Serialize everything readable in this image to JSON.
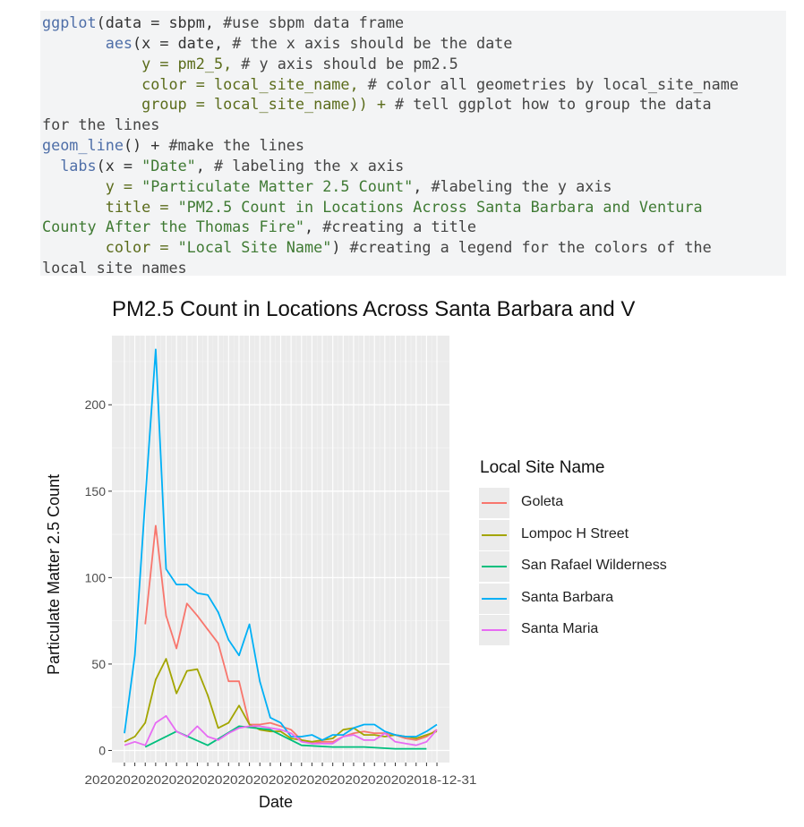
{
  "code": {
    "lines": [
      [
        {
          "t": "ggplot",
          "c": "c-fn"
        },
        {
          "t": "(data = sbpm, ",
          "c": ""
        },
        {
          "t": "#use sbpm data frame",
          "c": "c-cm"
        }
      ],
      [
        {
          "t": "       aes",
          "c": "c-fn"
        },
        {
          "t": "(x = date, ",
          "c": ""
        },
        {
          "t": "# the x axis should be the date",
          "c": "c-cm"
        }
      ],
      [
        {
          "t": "           y = pm2_5, ",
          "c": "c-kw"
        },
        {
          "t": "# y axis should be pm2.5",
          "c": "c-cm"
        }
      ],
      [
        {
          "t": "           color = local_site_name, ",
          "c": "c-kw"
        },
        {
          "t": "# color all geometries by local_site_name",
          "c": "c-cm"
        }
      ],
      [
        {
          "t": "           group = local_site_name)) + ",
          "c": "c-kw"
        },
        {
          "t": "# tell ggplot how to group the data",
          "c": "c-cm"
        }
      ],
      [
        {
          "t": "for the lines",
          "c": "c-cm"
        }
      ],
      [
        {
          "t": "geom_line",
          "c": "c-fn"
        },
        {
          "t": "() + ",
          "c": ""
        },
        {
          "t": "#make the lines",
          "c": "c-cm"
        }
      ],
      [
        {
          "t": "  labs",
          "c": "c-fn"
        },
        {
          "t": "(x = ",
          "c": ""
        },
        {
          "t": "\"Date\"",
          "c": "c-str"
        },
        {
          "t": ", ",
          "c": ""
        },
        {
          "t": "# labeling the x axis",
          "c": "c-cm"
        }
      ],
      [
        {
          "t": "       y = ",
          "c": "c-kw"
        },
        {
          "t": "\"Particulate Matter 2.5 Count\"",
          "c": "c-str"
        },
        {
          "t": ", ",
          "c": ""
        },
        {
          "t": "#labeling the y axis",
          "c": "c-cm"
        }
      ],
      [
        {
          "t": "       title = ",
          "c": "c-kw"
        },
        {
          "t": "\"PM2.5 Count in Locations Across Santa Barbara and Ventura",
          "c": "c-str"
        }
      ],
      [
        {
          "t": "County After the Thomas Fire\"",
          "c": "c-str"
        },
        {
          "t": ", ",
          "c": ""
        },
        {
          "t": "#creating a title",
          "c": "c-cm"
        }
      ],
      [
        {
          "t": "       color = ",
          "c": "c-kw"
        },
        {
          "t": "\"Local Site Name\"",
          "c": "c-str"
        },
        {
          "t": ") ",
          "c": ""
        },
        {
          "t": "#creating a legend for the colors of the",
          "c": "c-cm"
        }
      ],
      [
        {
          "t": "local site names",
          "c": "c-cm"
        }
      ]
    ]
  },
  "chart_data": {
    "type": "line",
    "title": "PM2.5 Count in Locations Across Santa Barbara and V",
    "xlabel": "Date",
    "ylabel": "Particulate Matter 2.5 Count",
    "ylim": [
      -7,
      240
    ],
    "xlim": [
      -1.2,
      31.2
    ],
    "y_ticks": [
      0,
      50,
      100,
      150,
      200
    ],
    "x_tick_label_text": "2020202020202020202020202020202020202020202018-12-31",
    "grid": true,
    "legend_title": "Local Site Name",
    "legend_position": "right",
    "series": [
      {
        "name": "Goleta",
        "color": "#F8766D",
        "x": [
          2,
          3,
          4,
          5,
          6,
          7,
          8,
          9,
          10,
          11,
          12,
          13,
          14,
          15,
          16,
          17,
          18,
          19,
          20,
          21,
          22,
          23,
          24,
          25,
          26,
          27,
          28,
          29,
          30
        ],
        "values": [
          73,
          130,
          78,
          59,
          85,
          78,
          70,
          62,
          40,
          40,
          15,
          15,
          16,
          14,
          12,
          6,
          4,
          5,
          5,
          8,
          10,
          11,
          10,
          10,
          9,
          7,
          6,
          8,
          12
        ]
      },
      {
        "name": "Lompoc H Street",
        "color": "#A3A500",
        "x": [
          0,
          1,
          2,
          3,
          4,
          5,
          6,
          7,
          8,
          9,
          10,
          11,
          12,
          13,
          14,
          15,
          16,
          17,
          18,
          19,
          20,
          21,
          22,
          23,
          24,
          25,
          26,
          27,
          28,
          29,
          30
        ],
        "values": [
          5,
          8,
          16,
          41,
          53,
          33,
          46,
          47,
          32,
          13,
          16,
          26,
          15,
          12,
          11,
          11,
          7,
          6,
          5,
          6,
          7,
          12,
          13,
          9,
          9,
          8,
          9,
          8,
          7,
          9,
          11
        ]
      },
      {
        "name": "San Rafael Wilderness",
        "color": "#00BF7D",
        "x": [
          2,
          5,
          8,
          11,
          14,
          17,
          20,
          23,
          26,
          29
        ],
        "values": [
          2,
          11,
          3,
          14,
          12,
          3,
          2,
          2,
          1,
          1
        ]
      },
      {
        "name": "Santa Barbara",
        "color": "#00B0F6",
        "x": [
          0,
          1,
          2,
          3,
          4,
          5,
          6,
          7,
          8,
          9,
          10,
          11,
          12,
          13,
          14,
          15,
          16,
          17,
          18,
          19,
          20,
          21,
          22,
          23,
          24,
          25,
          26,
          27,
          28,
          29,
          30
        ],
        "values": [
          10,
          55,
          145,
          232,
          105,
          96,
          96,
          91,
          90,
          80,
          64,
          55,
          73,
          40,
          19,
          16,
          8,
          8,
          9,
          6,
          9,
          9,
          13,
          15,
          15,
          11,
          9,
          8,
          8,
          11,
          15
        ]
      },
      {
        "name": "Santa Maria",
        "color": "#E76BF3",
        "x": [
          0,
          1,
          2,
          3,
          4,
          5,
          6,
          7,
          8,
          9,
          10,
          11,
          12,
          13,
          14,
          15,
          16,
          17,
          18,
          19,
          20,
          21,
          22,
          23,
          24,
          25,
          26,
          27,
          28,
          29,
          30
        ],
        "values": [
          3,
          5,
          3,
          16,
          20,
          11,
          8,
          14,
          8,
          6,
          10,
          13,
          14,
          14,
          13,
          12,
          10,
          5,
          4,
          4,
          4,
          8,
          9,
          6,
          6,
          10,
          5,
          4,
          3,
          5,
          12
        ]
      }
    ]
  }
}
